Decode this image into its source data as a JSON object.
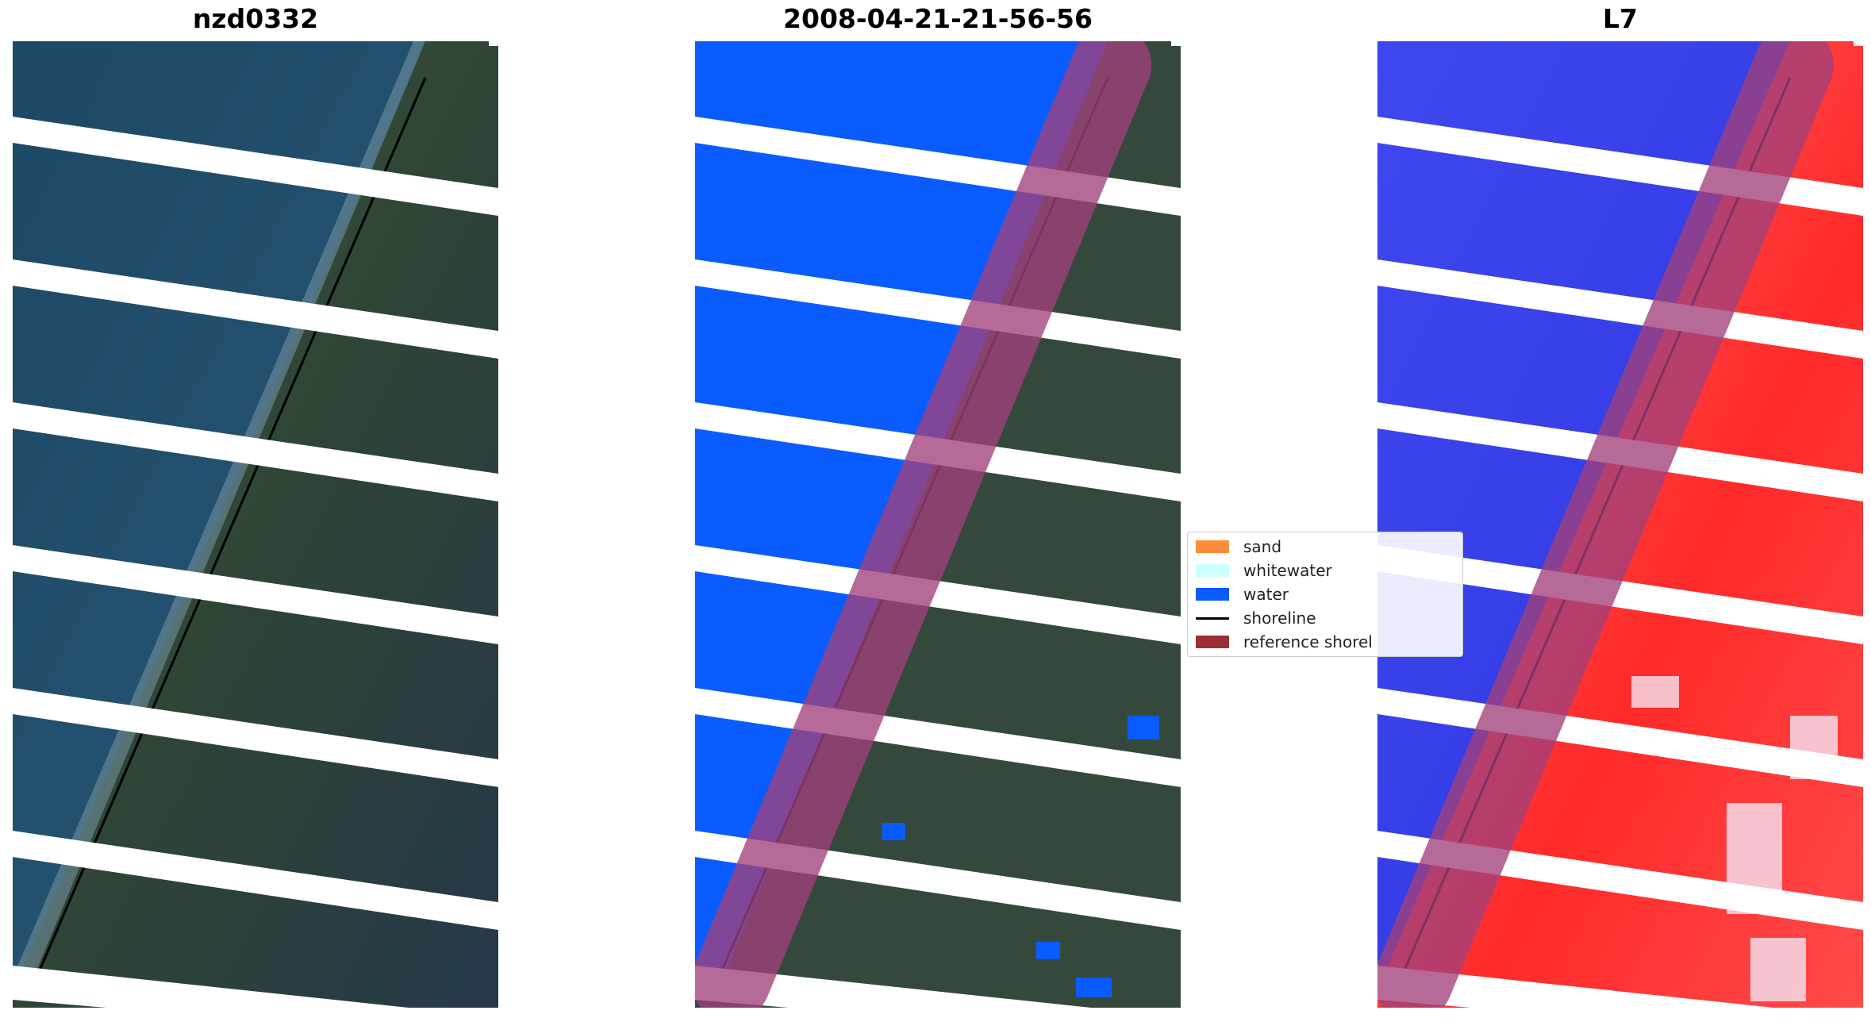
{
  "panels": [
    {
      "title": "nzd0332"
    },
    {
      "title": "2008-04-21-21-56-56"
    },
    {
      "title": "L7"
    }
  ],
  "legend": {
    "items": [
      {
        "label": "sand",
        "kind": "patch",
        "color": "#ff8c3a"
      },
      {
        "label": "whitewater",
        "kind": "patch",
        "color": "#ccffff"
      },
      {
        "label": "water",
        "kind": "patch",
        "color": "#0a5cff"
      },
      {
        "label": "shoreline",
        "kind": "line",
        "color": "#000000"
      },
      {
        "label": "reference shorel",
        "kind": "patch",
        "color": "#9b3036"
      }
    ]
  },
  "colors": {
    "ocean_rgb": "#1f4a66",
    "land_rgb": "#33483c",
    "classified_water": "#0a5cff",
    "reference_buffer": "#a2417b",
    "mndwi_water": "#2f3cf0",
    "mndwi_land": "#ff3b3b"
  }
}
